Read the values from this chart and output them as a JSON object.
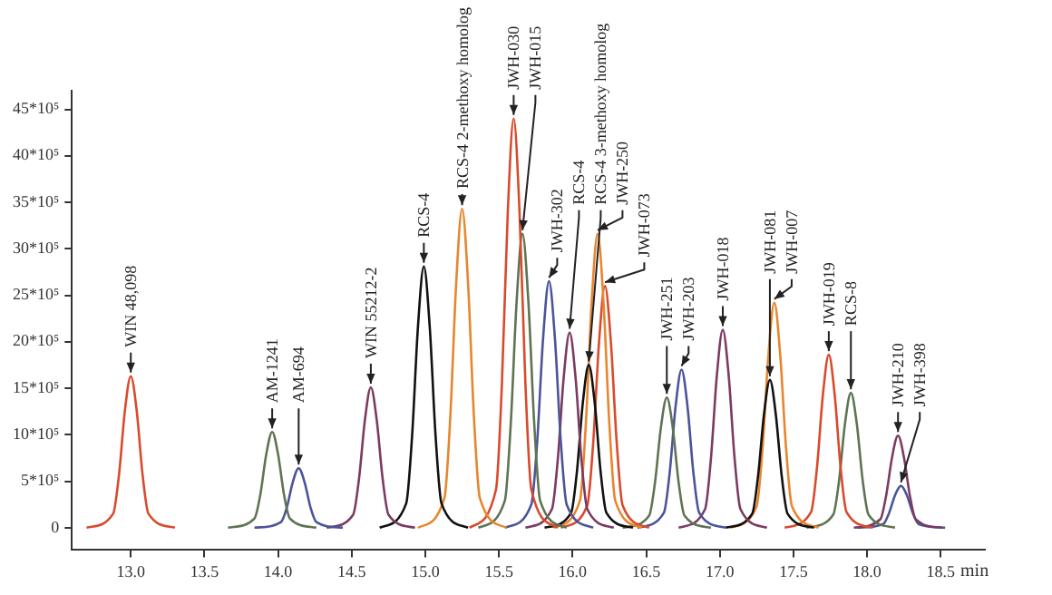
{
  "chart_data": {
    "type": "line",
    "xlabel": "min",
    "xlim": [
      12.6,
      18.8
    ],
    "xticks": [
      {
        "value": 13,
        "label": "13.0"
      },
      {
        "value": 13.5,
        "label": "13.5"
      },
      {
        "value": 14,
        "label": "14.0"
      },
      {
        "value": 14.5,
        "label": "14.5"
      },
      {
        "value": 15,
        "label": "15.0"
      },
      {
        "value": 15.5,
        "label": "15.5"
      },
      {
        "value": 16,
        "label": "16.0"
      },
      {
        "value": 16.5,
        "label": "16.5"
      },
      {
        "value": 17,
        "label": "17.0"
      },
      {
        "value": 17.5,
        "label": "17.5"
      },
      {
        "value": 18,
        "label": "18.0"
      },
      {
        "value": 18.5,
        "label": "18.5"
      }
    ],
    "ylim": [
      -240000,
      4700000
    ],
    "yticks": [
      {
        "value": 0,
        "label": "0"
      },
      {
        "value": 500000,
        "label": "5*10⁵"
      },
      {
        "value": 1000000,
        "label": "10*10⁵"
      },
      {
        "value": 1500000,
        "label": "15*10⁵"
      },
      {
        "value": 2000000,
        "label": "20*10⁵"
      },
      {
        "value": 2500000,
        "label": "25*10⁵"
      },
      {
        "value": 3000000,
        "label": "30*10⁵"
      },
      {
        "value": 3500000,
        "label": "35*10⁵"
      },
      {
        "value": 4000000,
        "label": "40*10⁵"
      },
      {
        "value": 4500000,
        "label": "45*10⁵"
      }
    ],
    "series": [
      {
        "color": "#d94a2c",
        "x": [
          12.7,
          12.88,
          12.92,
          12.96,
          13,
          13.04,
          13.08,
          13.12,
          13.3
        ],
        "values": [
          0,
          150000,
          570000,
          1260000,
          1630000,
          1260000,
          570000,
          150000,
          0
        ]
      },
      {
        "color": "#5e7452",
        "x": [
          13.66,
          13.84,
          13.88,
          13.92,
          13.96,
          14,
          14.04,
          14.08,
          14.26
        ],
        "values": [
          0,
          100000,
          360000,
          790000,
          1030000,
          790000,
          360000,
          100000,
          0
        ]
      },
      {
        "color": "#4b5499",
        "x": [
          13.84,
          14.02,
          14.06,
          14.1,
          14.14,
          14.18,
          14.22,
          14.26,
          14.44
        ],
        "values": [
          0,
          60000,
          220000,
          490000,
          640000,
          490000,
          220000,
          60000,
          0
        ]
      },
      {
        "color": "#7b3b62",
        "x": [
          14.33,
          14.51,
          14.55,
          14.59,
          14.63,
          14.67,
          14.71,
          14.75,
          14.93
        ],
        "values": [
          0,
          140000,
          530000,
          1160000,
          1510000,
          1160000,
          530000,
          140000,
          0
        ]
      },
      {
        "color": "#111111",
        "x": [
          14.69,
          14.87,
          14.91,
          14.95,
          14.99,
          15.03,
          15.07,
          15.11,
          15.29
        ],
        "values": [
          0,
          260000,
          980000,
          2160000,
          2810000,
          2160000,
          980000,
          260000,
          0
        ]
      },
      {
        "color": "#e8862e",
        "x": [
          14.95,
          15.13,
          15.17,
          15.21,
          15.25,
          15.29,
          15.33,
          15.37,
          15.55
        ],
        "values": [
          0,
          320000,
          1200000,
          2640000,
          3430000,
          2640000,
          1200000,
          320000,
          0
        ]
      },
      {
        "color": "#d94a2c",
        "x": [
          15.3,
          15.48,
          15.52,
          15.56,
          15.6,
          15.64,
          15.68,
          15.72,
          15.9
        ],
        "values": [
          0,
          410000,
          1540000,
          3390000,
          4400000,
          3390000,
          1540000,
          410000,
          0
        ]
      },
      {
        "color": "#5e7452",
        "x": [
          15.36,
          15.54,
          15.58,
          15.62,
          15.66,
          15.7,
          15.74,
          15.78,
          15.96
        ],
        "values": [
          0,
          290000,
          1110000,
          2430000,
          3160000,
          2430000,
          1110000,
          290000,
          0
        ]
      },
      {
        "color": "#4b5499",
        "x": [
          15.54,
          15.72,
          15.76,
          15.8,
          15.84,
          15.88,
          15.92,
          15.96,
          16.14
        ],
        "values": [
          0,
          250000,
          930000,
          2040000,
          2650000,
          2040000,
          930000,
          250000,
          0
        ]
      },
      {
        "color": "#7b3b62",
        "x": [
          15.68,
          15.86,
          15.9,
          15.94,
          15.98,
          16.02,
          16.06,
          16.1,
          16.28
        ],
        "values": [
          0,
          200000,
          740000,
          1620000,
          2100000,
          1620000,
          740000,
          200000,
          0
        ]
      },
      {
        "color": "#111111",
        "x": [
          15.81,
          15.99,
          16.03,
          16.07,
          16.11,
          16.15,
          16.19,
          16.23,
          16.41
        ],
        "values": [
          0,
          160000,
          610000,
          1350000,
          1750000,
          1350000,
          610000,
          160000,
          0
        ]
      },
      {
        "color": "#e8862e",
        "x": [
          15.87,
          16.05,
          16.09,
          16.13,
          16.17,
          16.21,
          16.25,
          16.29,
          16.47
        ],
        "values": [
          0,
          290000,
          1110000,
          2430000,
          3160000,
          2430000,
          1110000,
          290000,
          0
        ]
      },
      {
        "color": "#d94a2c",
        "x": [
          15.92,
          16.1,
          16.14,
          16.18,
          16.22,
          16.26,
          16.3,
          16.34,
          16.52
        ],
        "values": [
          0,
          240000,
          910000,
          2000000,
          2600000,
          2000000,
          910000,
          240000,
          0
        ]
      },
      {
        "color": "#5e7452",
        "x": [
          16.34,
          16.52,
          16.56,
          16.6,
          16.64,
          16.68,
          16.72,
          16.76,
          16.94
        ],
        "values": [
          0,
          130000,
          490000,
          1080000,
          1400000,
          1080000,
          490000,
          130000,
          0
        ]
      },
      {
        "color": "#4b5499",
        "x": [
          16.44,
          16.62,
          16.66,
          16.7,
          16.74,
          16.78,
          16.82,
          16.86,
          17.04
        ],
        "values": [
          0,
          160000,
          600000,
          1310000,
          1700000,
          1310000,
          600000,
          160000,
          0
        ]
      },
      {
        "color": "#7b3b62",
        "x": [
          16.72,
          16.9,
          16.94,
          16.98,
          17.02,
          17.06,
          17.1,
          17.14,
          17.32
        ],
        "values": [
          0,
          200000,
          750000,
          1640000,
          2130000,
          1640000,
          750000,
          200000,
          0
        ]
      },
      {
        "color": "#111111",
        "x": [
          17.04,
          17.22,
          17.26,
          17.3,
          17.34,
          17.38,
          17.42,
          17.46,
          17.64
        ],
        "values": [
          0,
          150000,
          560000,
          1220000,
          1590000,
          1220000,
          560000,
          150000,
          0
        ]
      },
      {
        "color": "#e8862e",
        "x": [
          17.07,
          17.25,
          17.29,
          17.33,
          17.37,
          17.41,
          17.45,
          17.49,
          17.67
        ],
        "values": [
          0,
          230000,
          850000,
          1860000,
          2420000,
          1860000,
          850000,
          230000,
          0
        ]
      },
      {
        "color": "#d94a2c",
        "x": [
          17.44,
          17.62,
          17.66,
          17.7,
          17.74,
          17.78,
          17.82,
          17.86,
          18.04
        ],
        "values": [
          0,
          170000,
          650000,
          1430000,
          1860000,
          1430000,
          650000,
          170000,
          0
        ]
      },
      {
        "color": "#5e7452",
        "x": [
          17.59,
          17.77,
          17.81,
          17.85,
          17.89,
          17.93,
          17.97,
          18.01,
          18.19
        ],
        "values": [
          0,
          140000,
          510000,
          1120000,
          1450000,
          1120000,
          510000,
          140000,
          0
        ]
      },
      {
        "color": "#7b3b62",
        "x": [
          17.91,
          18.09,
          18.13,
          18.17,
          18.21,
          18.25,
          18.29,
          18.33,
          18.51
        ],
        "values": [
          0,
          90000,
          350000,
          760000,
          990000,
          760000,
          350000,
          90000,
          0
        ]
      },
      {
        "color": "#4b5499",
        "x": [
          17.93,
          18.11,
          18.15,
          18.19,
          18.23,
          18.27,
          18.31,
          18.35,
          18.53
        ],
        "values": [
          0,
          40000,
          160000,
          350000,
          450000,
          350000,
          160000,
          40000,
          0
        ]
      }
    ],
    "annotations": [
      {
        "text": "WIN 48,098",
        "x": 13,
        "y": 1630000
      },
      {
        "text": "AM-1241",
        "x": 13.96,
        "y": 1030000
      },
      {
        "text": "AM-694",
        "x": 14.14,
        "y": 640000
      },
      {
        "text": "WIN 55212-2",
        "x": 14.63,
        "y": 1510000
      },
      {
        "text": "RCS-4",
        "x": 14.99,
        "y": 2810000
      },
      {
        "text": "RCS-4 2-methoxy homolog",
        "x": 15.25,
        "y": 3430000
      },
      {
        "text": "JWH-030",
        "x": 15.6,
        "y": 4400000
      },
      {
        "text": "JWH-015",
        "x": 15.66,
        "y": 3160000
      },
      {
        "text": "JWH-302",
        "x": 15.84,
        "y": 2650000
      },
      {
        "text": "RCS-4",
        "x": 15.98,
        "y": 2100000
      },
      {
        "text": "RCS-4 3-methoxy homolog",
        "x": 16.11,
        "y": 1750000
      },
      {
        "text": "JWH-250",
        "x": 16.17,
        "y": 3160000
      },
      {
        "text": "JWH-073",
        "x": 16.22,
        "y": 2600000
      },
      {
        "text": "JWH-251",
        "x": 16.64,
        "y": 1400000
      },
      {
        "text": "JWH-203",
        "x": 16.74,
        "y": 1700000
      },
      {
        "text": "JWH-018",
        "x": 17.02,
        "y": 2130000
      },
      {
        "text": "JWH-081",
        "x": 17.34,
        "y": 1590000
      },
      {
        "text": "JWH-007",
        "x": 17.37,
        "y": 2420000
      },
      {
        "text": "JWH-019",
        "x": 17.74,
        "y": 1860000
      },
      {
        "text": "RCS-8",
        "x": 17.89,
        "y": 1450000
      },
      {
        "text": "JWH-210",
        "x": 18.21,
        "y": 990000
      },
      {
        "text": "JWH-398",
        "x": 18.23,
        "y": 450000
      }
    ]
  }
}
